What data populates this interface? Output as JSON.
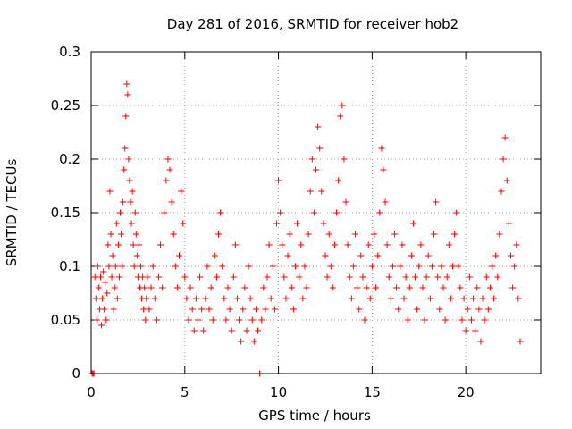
{
  "chart_data": {
    "type": "scatter",
    "title": "Day 281 of 2016, SRMTID for receiver hob2",
    "xlabel": "GPS time / hours",
    "ylabel": "SRMTID / TECUs",
    "xlim": [
      0,
      24
    ],
    "ylim": [
      0,
      0.3
    ],
    "xticks": [
      0,
      5,
      10,
      15,
      20
    ],
    "yticks": [
      0,
      0.05,
      0.1,
      0.15,
      0.2,
      0.25,
      0.3
    ],
    "xtick_labels": [
      "0",
      "5",
      "10",
      "15",
      "20"
    ],
    "ytick_labels": [
      "0",
      "0.05",
      "0.1",
      "0.15",
      "0.2",
      "0.25",
      "0.3"
    ],
    "grid": true,
    "marker": "+",
    "color": "#ff0000",
    "series": [
      {
        "name": "SRMTID",
        "points": [
          [
            0.05,
            0.0
          ],
          [
            0.1,
            0.0
          ],
          [
            0.15,
            0.0
          ],
          [
            0.2,
            0.09
          ],
          [
            0.25,
            0.07
          ],
          [
            0.3,
            0.05
          ],
          [
            0.35,
            0.1
          ],
          [
            0.4,
            0.08
          ],
          [
            0.45,
            0.06
          ],
          [
            0.5,
            0.09
          ],
          [
            0.55,
            0.045
          ],
          [
            0.6,
            0.07
          ],
          [
            0.65,
            0.095
          ],
          [
            0.7,
            0.06
          ],
          [
            0.75,
            0.085
          ],
          [
            0.8,
            0.05
          ],
          [
            0.85,
            0.075
          ],
          [
            0.9,
            0.12
          ],
          [
            0.95,
            0.1
          ],
          [
            1.0,
            0.17
          ],
          [
            1.05,
            0.13
          ],
          [
            1.1,
            0.09
          ],
          [
            1.15,
            0.11
          ],
          [
            1.2,
            0.06
          ],
          [
            1.25,
            0.08
          ],
          [
            1.3,
            0.1
          ],
          [
            1.35,
            0.14
          ],
          [
            1.4,
            0.07
          ],
          [
            1.45,
            0.12
          ],
          [
            1.5,
            0.09
          ],
          [
            1.55,
            0.15
          ],
          [
            1.6,
            0.13
          ],
          [
            1.65,
            0.1
          ],
          [
            1.7,
            0.16
          ],
          [
            1.75,
            0.19
          ],
          [
            1.8,
            0.21
          ],
          [
            1.85,
            0.24
          ],
          [
            1.9,
            0.27
          ],
          [
            1.95,
            0.26
          ],
          [
            2.0,
            0.2
          ],
          [
            2.05,
            0.18
          ],
          [
            2.1,
            0.16
          ],
          [
            2.15,
            0.14
          ],
          [
            2.2,
            0.17
          ],
          [
            2.25,
            0.12
          ],
          [
            2.3,
            0.1
          ],
          [
            2.35,
            0.15
          ],
          [
            2.4,
            0.13
          ],
          [
            2.45,
            0.11
          ],
          [
            2.5,
            0.09
          ],
          [
            2.55,
            0.12
          ],
          [
            2.6,
            0.08
          ],
          [
            2.65,
            0.1
          ],
          [
            2.7,
            0.07
          ],
          [
            2.75,
            0.09
          ],
          [
            2.8,
            0.06
          ],
          [
            2.85,
            0.08
          ],
          [
            2.9,
            0.05
          ],
          [
            2.95,
            0.07
          ],
          [
            3.0,
            0.09
          ],
          [
            3.1,
            0.06
          ],
          [
            3.2,
            0.08
          ],
          [
            3.3,
            0.1
          ],
          [
            3.4,
            0.07
          ],
          [
            3.5,
            0.05
          ],
          [
            3.6,
            0.09
          ],
          [
            3.7,
            0.12
          ],
          [
            3.8,
            0.08
          ],
          [
            3.9,
            0.15
          ],
          [
            4.0,
            0.18
          ],
          [
            4.1,
            0.2
          ],
          [
            4.2,
            0.19
          ],
          [
            4.3,
            0.16
          ],
          [
            4.4,
            0.13
          ],
          [
            4.5,
            0.1
          ],
          [
            4.6,
            0.08
          ],
          [
            4.7,
            0.11
          ],
          [
            4.8,
            0.17
          ],
          [
            4.9,
            0.14
          ],
          [
            5.0,
            0.09
          ],
          [
            5.1,
            0.07
          ],
          [
            5.2,
            0.05
          ],
          [
            5.3,
            0.08
          ],
          [
            5.4,
            0.06
          ],
          [
            5.5,
            0.04
          ],
          [
            5.6,
            0.07
          ],
          [
            5.7,
            0.05
          ],
          [
            5.8,
            0.09
          ],
          [
            5.9,
            0.06
          ],
          [
            6.0,
            0.04
          ],
          [
            6.1,
            0.07
          ],
          [
            6.2,
            0.1
          ],
          [
            6.3,
            0.06
          ],
          [
            6.4,
            0.08
          ],
          [
            6.5,
            0.05
          ],
          [
            6.6,
            0.11
          ],
          [
            6.7,
            0.09
          ],
          [
            6.8,
            0.13
          ],
          [
            6.9,
            0.15
          ],
          [
            7.0,
            0.1
          ],
          [
            7.1,
            0.07
          ],
          [
            7.2,
            0.05
          ],
          [
            7.3,
            0.08
          ],
          [
            7.4,
            0.06
          ],
          [
            7.5,
            0.04
          ],
          [
            7.6,
            0.09
          ],
          [
            7.7,
            0.12
          ],
          [
            7.8,
            0.07
          ],
          [
            7.9,
            0.05
          ],
          [
            8.0,
            0.03
          ],
          [
            8.1,
            0.06
          ],
          [
            8.2,
            0.08
          ],
          [
            8.3,
            0.04
          ],
          [
            8.4,
            0.1
          ],
          [
            8.5,
            0.07
          ],
          [
            8.6,
            0.05
          ],
          [
            8.7,
            0.03
          ],
          [
            8.8,
            0.06
          ],
          [
            8.9,
            0.04
          ],
          [
            9.0,
            0.0
          ],
          [
            9.1,
            0.05
          ],
          [
            9.2,
            0.08
          ],
          [
            9.3,
            0.06
          ],
          [
            9.4,
            0.09
          ],
          [
            9.5,
            0.12
          ],
          [
            9.6,
            0.07
          ],
          [
            9.7,
            0.1
          ],
          [
            9.8,
            0.06
          ],
          [
            9.9,
            0.14
          ],
          [
            10.0,
            0.18
          ],
          [
            10.1,
            0.15
          ],
          [
            10.2,
            0.12
          ],
          [
            10.3,
            0.09
          ],
          [
            10.4,
            0.07
          ],
          [
            10.5,
            0.11
          ],
          [
            10.6,
            0.13
          ],
          [
            10.7,
            0.08
          ],
          [
            10.8,
            0.06
          ],
          [
            10.9,
            0.1
          ],
          [
            11.0,
            0.14
          ],
          [
            11.1,
            0.09
          ],
          [
            11.2,
            0.12
          ],
          [
            11.3,
            0.07
          ],
          [
            11.4,
            0.1
          ],
          [
            11.5,
            0.08
          ],
          [
            11.6,
            0.13
          ],
          [
            11.7,
            0.17
          ],
          [
            11.8,
            0.2
          ],
          [
            11.9,
            0.15
          ],
          [
            12.0,
            0.19
          ],
          [
            12.1,
            0.23
          ],
          [
            12.2,
            0.21
          ],
          [
            12.3,
            0.17
          ],
          [
            12.4,
            0.14
          ],
          [
            12.5,
            0.11
          ],
          [
            12.6,
            0.09
          ],
          [
            12.7,
            0.13
          ],
          [
            12.8,
            0.1
          ],
          [
            12.9,
            0.08
          ],
          [
            13.0,
            0.12
          ],
          [
            13.1,
            0.15
          ],
          [
            13.2,
            0.18
          ],
          [
            13.3,
            0.24
          ],
          [
            13.4,
            0.25
          ],
          [
            13.5,
            0.2
          ],
          [
            13.6,
            0.16
          ],
          [
            13.7,
            0.12
          ],
          [
            13.8,
            0.09
          ],
          [
            13.9,
            0.07
          ],
          [
            14.0,
            0.1
          ],
          [
            14.1,
            0.13
          ],
          [
            14.2,
            0.08
          ],
          [
            14.3,
            0.06
          ],
          [
            14.4,
            0.11
          ],
          [
            14.5,
            0.09
          ],
          [
            14.6,
            0.05
          ],
          [
            14.7,
            0.08
          ],
          [
            14.8,
            0.12
          ],
          [
            14.9,
            0.07
          ],
          [
            15.0,
            0.1
          ],
          [
            15.1,
            0.13
          ],
          [
            15.2,
            0.08
          ],
          [
            15.3,
            0.11
          ],
          [
            15.4,
            0.15
          ],
          [
            15.5,
            0.21
          ],
          [
            15.6,
            0.19
          ],
          [
            15.7,
            0.16
          ],
          [
            15.8,
            0.12
          ],
          [
            15.9,
            0.09
          ],
          [
            16.0,
            0.07
          ],
          [
            16.1,
            0.1
          ],
          [
            16.2,
            0.13
          ],
          [
            16.3,
            0.08
          ],
          [
            16.4,
            0.06
          ],
          [
            16.5,
            0.1
          ],
          [
            16.6,
            0.12
          ],
          [
            16.7,
            0.07
          ],
          [
            16.8,
            0.09
          ],
          [
            16.9,
            0.05
          ],
          [
            17.0,
            0.08
          ],
          [
            17.1,
            0.11
          ],
          [
            17.2,
            0.14
          ],
          [
            17.3,
            0.09
          ],
          [
            17.4,
            0.06
          ],
          [
            17.5,
            0.1
          ],
          [
            17.6,
            0.12
          ],
          [
            17.7,
            0.08
          ],
          [
            17.8,
            0.05
          ],
          [
            17.9,
            0.09
          ],
          [
            18.0,
            0.11
          ],
          [
            18.1,
            0.07
          ],
          [
            18.2,
            0.1
          ],
          [
            18.3,
            0.13
          ],
          [
            18.4,
            0.16
          ],
          [
            18.5,
            0.09
          ],
          [
            18.6,
            0.06
          ],
          [
            18.7,
            0.1
          ],
          [
            18.8,
            0.08
          ],
          [
            18.9,
            0.05
          ],
          [
            19.0,
            0.09
          ],
          [
            19.1,
            0.12
          ],
          [
            19.2,
            0.07
          ],
          [
            19.3,
            0.1
          ],
          [
            19.4,
            0.13
          ],
          [
            19.5,
            0.15
          ],
          [
            19.6,
            0.1
          ],
          [
            19.7,
            0.08
          ],
          [
            19.8,
            0.05
          ],
          [
            19.9,
            0.07
          ],
          [
            20.0,
            0.04
          ],
          [
            20.1,
            0.06
          ],
          [
            20.2,
            0.09
          ],
          [
            20.3,
            0.05
          ],
          [
            20.4,
            0.07
          ],
          [
            20.5,
            0.04
          ],
          [
            20.6,
            0.08
          ],
          [
            20.7,
            0.06
          ],
          [
            20.8,
            0.03
          ],
          [
            20.9,
            0.07
          ],
          [
            21.0,
            0.05
          ],
          [
            21.1,
            0.09
          ],
          [
            21.2,
            0.06
          ],
          [
            21.3,
            0.08
          ],
          [
            21.4,
            0.1
          ],
          [
            21.5,
            0.07
          ],
          [
            21.6,
            0.11
          ],
          [
            21.7,
            0.09
          ],
          [
            21.8,
            0.13
          ],
          [
            21.9,
            0.17
          ],
          [
            22.0,
            0.2
          ],
          [
            22.1,
            0.22
          ],
          [
            22.2,
            0.18
          ],
          [
            22.3,
            0.14
          ],
          [
            22.4,
            0.11
          ],
          [
            22.5,
            0.08
          ],
          [
            22.6,
            0.1
          ],
          [
            22.7,
            0.12
          ],
          [
            22.8,
            0.07
          ],
          [
            22.9,
            0.03
          ]
        ]
      }
    ]
  }
}
